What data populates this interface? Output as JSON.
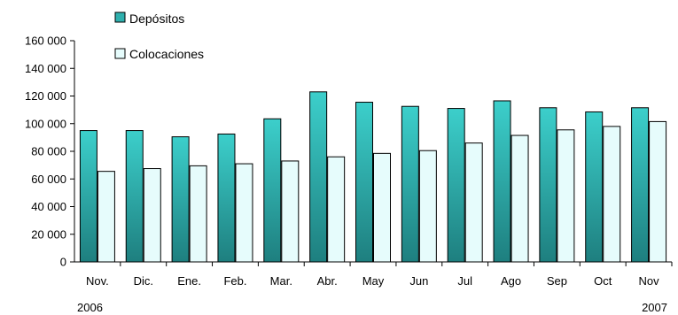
{
  "chart_data": {
    "type": "bar",
    "title": "",
    "xlabel": "",
    "ylabel": "",
    "categories": [
      "Nov.",
      "Dic.",
      "Ene.",
      "Feb.",
      "Mar.",
      "Abr.",
      "May",
      "Jun",
      "Jul",
      "Ago",
      "Sep",
      "Oct",
      "Nov"
    ],
    "year_labels": {
      "start": "2006",
      "end": "2007"
    },
    "series": [
      {
        "name": "Depósitos",
        "values": [
          95000,
          95000,
          90500,
          92500,
          103500,
          123000,
          115500,
          112500,
          111000,
          116500,
          111500,
          108500,
          111500
        ]
      },
      {
        "name": "Colocaciones",
        "values": [
          65500,
          67500,
          69500,
          71000,
          73000,
          76000,
          78500,
          80500,
          86000,
          91500,
          95500,
          98000,
          101500
        ]
      }
    ],
    "ylim": [
      0,
      160000
    ],
    "yticks": [
      0,
      20000,
      40000,
      60000,
      80000,
      100000,
      120000,
      140000,
      160000
    ],
    "ytick_labels": [
      "0",
      "20 000",
      "40 000",
      "60 000",
      "80 000",
      "100 000",
      "120 000",
      "140 000",
      "160 000"
    ],
    "grid": false,
    "legend_position": "top-left",
    "colors": {
      "depositos_top": "#3CCFCB",
      "depositos_bottom": "#1E7F7F",
      "colocaciones": "#E6FCFC",
      "stroke": "#000000"
    }
  }
}
